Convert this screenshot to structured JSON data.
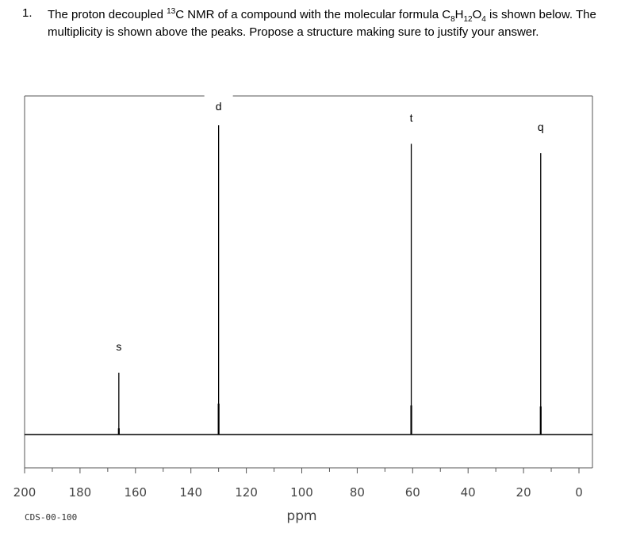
{
  "question": {
    "number": "1.",
    "part1": "The proton decoupled ",
    "isotope_mass": "13",
    "part2": "C NMR of a compound with the molecular formula C",
    "sub_c": "8",
    "h": "H",
    "sub_h": "12",
    "o": "O",
    "sub_o": "4",
    "part3": " is shown below.  The multiplicity is shown above the peaks.  Propose a structure making sure to justify your answer."
  },
  "chart_data": {
    "type": "line",
    "title": "",
    "xlabel": "ppm",
    "ylabel": "",
    "xlim": [
      200,
      0
    ],
    "x_ticks": [
      "200",
      "180",
      "160",
      "140",
      "120",
      "100",
      "80",
      "60",
      "40",
      "20",
      "0"
    ],
    "code": "CDS-00-100",
    "peaks": [
      {
        "ppm": 166,
        "intensity": 0.2,
        "multiplicity": "s"
      },
      {
        "ppm": 130,
        "intensity": 1.0,
        "multiplicity": "d"
      },
      {
        "ppm": 60.5,
        "intensity": 0.94,
        "multiplicity": "t"
      },
      {
        "ppm": 13.8,
        "intensity": 0.91,
        "multiplicity": "q"
      }
    ]
  }
}
